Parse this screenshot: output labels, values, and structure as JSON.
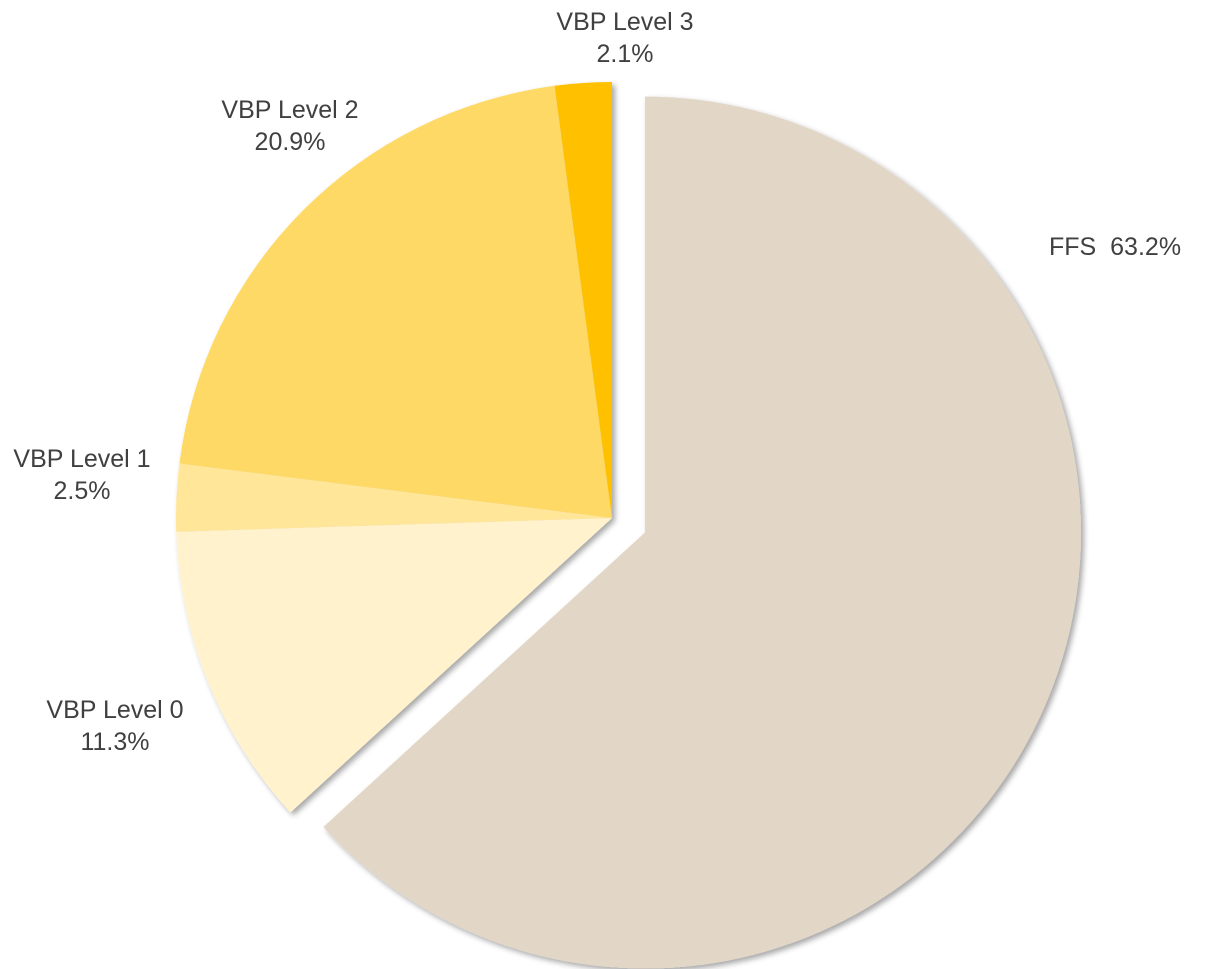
{
  "chart_data": {
    "type": "pie",
    "categories": [
      "FFS",
      "VBP Level 0",
      "VBP Level 1",
      "VBP Level 2",
      "VBP Level 3"
    ],
    "values": [
      63.2,
      11.3,
      2.5,
      20.9,
      2.1
    ],
    "value_labels": [
      "63.2%",
      "11.3%",
      "2.5%",
      "20.9%",
      "2.1%"
    ],
    "colors": [
      "#e2d6c6",
      "#fff2cc",
      "#ffe699",
      "#ffd966",
      "#ffc000"
    ],
    "exploded": [
      0
    ]
  }
}
